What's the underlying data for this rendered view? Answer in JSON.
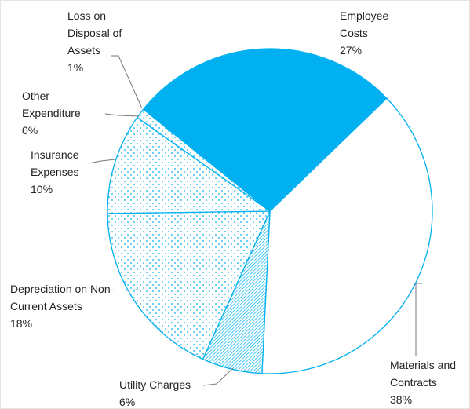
{
  "chart_data": {
    "type": "pie",
    "categories": [
      "Employee Costs",
      "Materials and Contracts",
      "Utility Charges",
      "Depreciation on Non-Current Assets",
      "Insurance Expenses",
      "Other Expenditure",
      "Loss on Disposal of Assets"
    ],
    "values": [
      27,
      38,
      6,
      18,
      10,
      0,
      1
    ],
    "value_labels": [
      "27%",
      "38%",
      "6%",
      "18%",
      "10%",
      "0%",
      "1%"
    ],
    "color": "#00b0f0",
    "fills": [
      "solid",
      "none",
      "hatch",
      "dots",
      "dots",
      "dots",
      "dots"
    ]
  }
}
